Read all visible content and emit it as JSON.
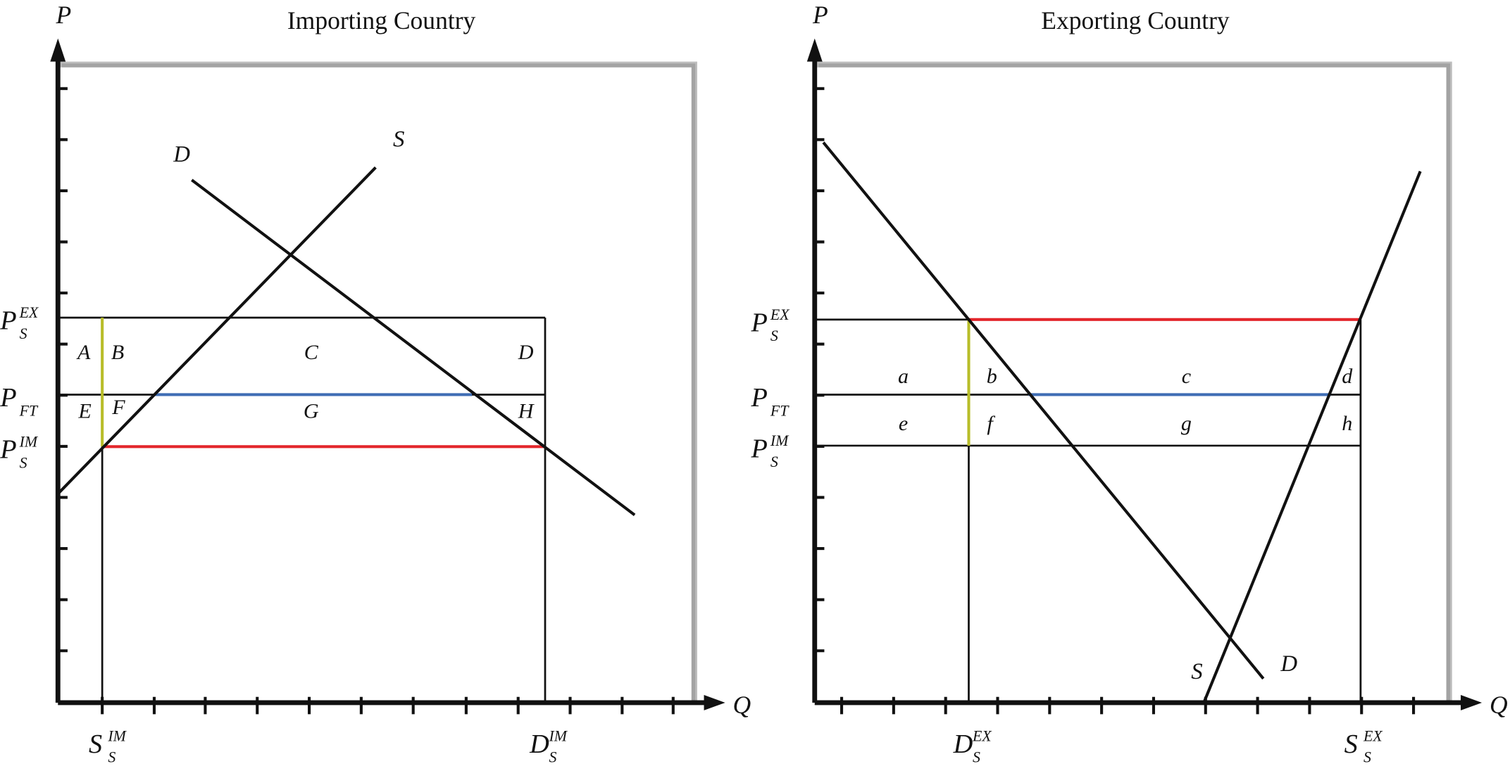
{
  "panels": [
    {
      "title": "Importing Country",
      "y_axis": "P",
      "x_axis": "Q",
      "curves": {
        "demand": "D",
        "supply": "S"
      },
      "prices": [
        {
          "base": "P",
          "sub": "S",
          "sup": "EX"
        },
        {
          "base": "P",
          "sub": "FT"
        },
        {
          "base": "P",
          "sub": "S",
          "sup": "IM"
        }
      ],
      "quantities": [
        {
          "base": "S",
          "sub": "S",
          "sup": "IM"
        },
        {
          "base": "D",
          "sub": "S",
          "sup": "IM"
        }
      ],
      "areas": [
        "A",
        "B",
        "C",
        "D",
        "E",
        "F",
        "G",
        "H"
      ]
    },
    {
      "title": "Exporting Country",
      "y_axis": "P",
      "x_axis": "Q",
      "curves": {
        "demand": "D",
        "supply": "S"
      },
      "prices": [
        {
          "base": "P",
          "sub": "S",
          "sup": "EX"
        },
        {
          "base": "P",
          "sub": "FT"
        },
        {
          "base": "P",
          "sub": "S",
          "sup": "IM"
        }
      ],
      "quantities": [
        {
          "base": "D",
          "sub": "S",
          "sup": "EX"
        },
        {
          "base": "S",
          "sub": "S",
          "sup": "EX"
        }
      ],
      "areas": [
        "a",
        "b",
        "c",
        "d",
        "e",
        "f",
        "g",
        "h"
      ]
    }
  ]
}
